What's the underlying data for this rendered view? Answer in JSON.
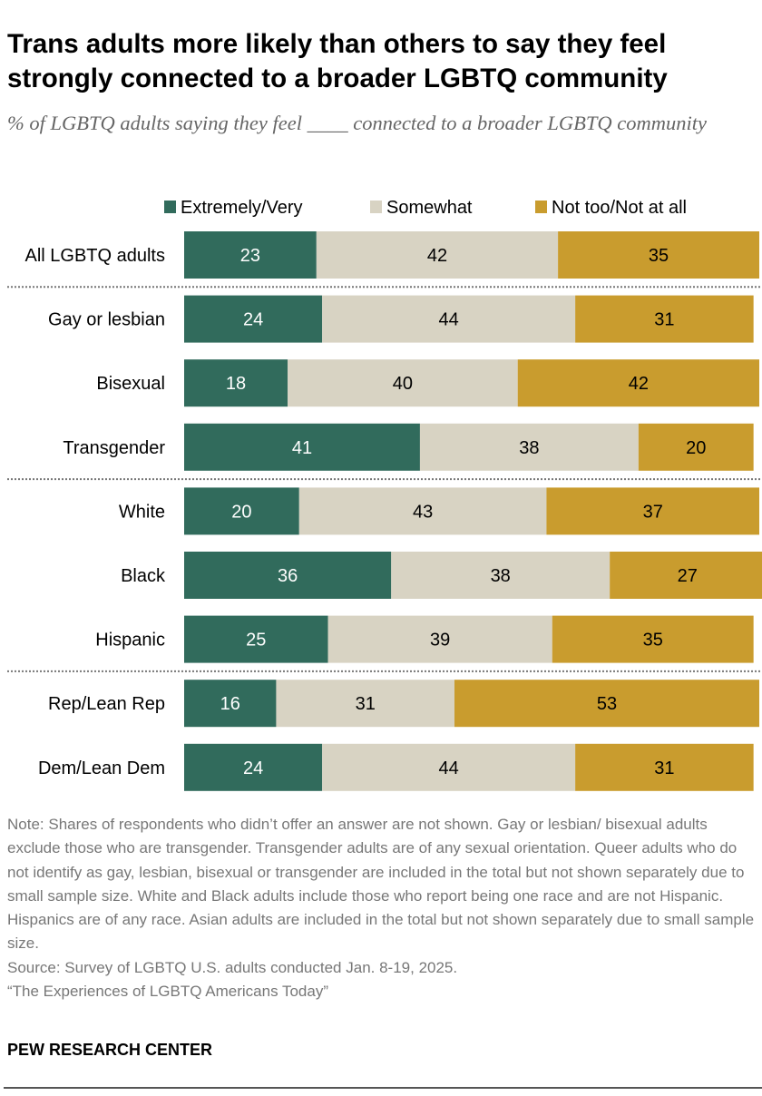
{
  "title": "Trans adults more likely than others to say they feel strongly connected to a broader LGBTQ community",
  "subtitle": "% of LGBTQ adults saying they feel ____ connected to a broader LGBTQ community",
  "chart_data": {
    "type": "bar",
    "orientation": "horizontal",
    "stacked": true,
    "xlim": [
      0,
      100
    ],
    "legend_position": "top",
    "categories": [
      "All LGBTQ adults",
      "Gay or lesbian",
      "Bisexual",
      "Transgender",
      "White",
      "Black",
      "Hispanic",
      "Rep/Lean Rep",
      "Dem/Lean Dem"
    ],
    "groups_after": [
      0,
      3,
      6
    ],
    "series": [
      {
        "name": "Extremely/Very",
        "color": "#316b5c",
        "label_color": "#ffffff",
        "values": [
          23,
          24,
          18,
          41,
          20,
          36,
          25,
          16,
          24
        ]
      },
      {
        "name": "Somewhat",
        "color": "#d8d3c3",
        "label_color": "#000000",
        "values": [
          42,
          44,
          40,
          38,
          43,
          38,
          39,
          31,
          44
        ]
      },
      {
        "name": "Not too/Not at all",
        "color": "#c99c2e",
        "label_color": "#000000",
        "values": [
          35,
          31,
          42,
          20,
          37,
          27,
          35,
          53,
          31
        ]
      }
    ]
  },
  "notes": {
    "note": "Note: Shares of respondents who didn’t offer an answer are not shown. Gay or lesbian/ bisexual adults exclude those who are transgender. Transgender adults are of any sexual orientation. Queer adults who do not identify as gay, lesbian, bisexual or transgender are included in the total but not shown separately due to small sample size. White and Black adults include those who report being one race and are not Hispanic. Hispanics are of any race. Asian adults are included in the total but not shown separately due to small sample size.",
    "source": "Source: Survey of LGBTQ U.S. adults conducted Jan. 8-19, 2025.",
    "report": "“The Experiences of LGBTQ Americans Today”"
  },
  "brand": "PEW RESEARCH CENTER"
}
